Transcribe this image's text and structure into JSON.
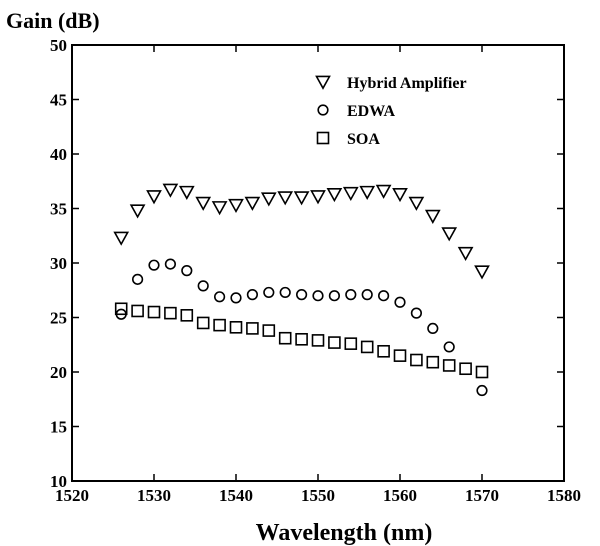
{
  "chart_data": {
    "type": "scatter",
    "ylabel": "Gain (dB)",
    "xlabel": "Wavelength (nm)",
    "xlim": [
      1520,
      1580
    ],
    "ylim": [
      10,
      50
    ],
    "xticks": [
      "1520",
      "1530",
      "1540",
      "1550",
      "1560",
      "1570",
      "1580"
    ],
    "yticks": [
      "10",
      "15",
      "20",
      "25",
      "30",
      "35",
      "40",
      "45",
      "50"
    ],
    "grid": false,
    "legend_position": "top-right",
    "series": [
      {
        "name": "Hybrid Amplifier",
        "marker": "triangle-down",
        "x": [
          1526,
          1528,
          1530,
          1532,
          1534,
          1536,
          1538,
          1540,
          1542,
          1544,
          1546,
          1548,
          1550,
          1552,
          1554,
          1556,
          1558,
          1560,
          1562,
          1564,
          1566,
          1568,
          1570
        ],
        "y": [
          32.3,
          34.8,
          36.1,
          36.7,
          36.5,
          35.5,
          35.1,
          35.3,
          35.5,
          35.9,
          36.0,
          36.0,
          36.1,
          36.3,
          36.4,
          36.5,
          36.6,
          36.3,
          35.5,
          34.3,
          32.7,
          30.9,
          29.2
        ]
      },
      {
        "name": "EDWA",
        "marker": "circle",
        "x": [
          1526,
          1528,
          1530,
          1532,
          1534,
          1536,
          1538,
          1540,
          1542,
          1544,
          1546,
          1548,
          1550,
          1552,
          1554,
          1556,
          1558,
          1560,
          1562,
          1564,
          1566,
          1570
        ],
        "y": [
          25.3,
          28.5,
          29.8,
          29.9,
          29.3,
          27.9,
          26.9,
          26.8,
          27.1,
          27.3,
          27.3,
          27.1,
          27.0,
          27.0,
          27.1,
          27.1,
          27.0,
          26.4,
          25.4,
          24.0,
          22.3,
          18.3
        ]
      },
      {
        "name": "SOA",
        "marker": "square",
        "x": [
          1526,
          1528,
          1530,
          1532,
          1534,
          1536,
          1538,
          1540,
          1542,
          1544,
          1546,
          1548,
          1550,
          1552,
          1554,
          1556,
          1558,
          1560,
          1562,
          1564,
          1566,
          1568,
          1570
        ],
        "y": [
          25.8,
          25.6,
          25.5,
          25.4,
          25.2,
          24.5,
          24.3,
          24.1,
          24.0,
          23.8,
          23.1,
          23.0,
          22.9,
          22.7,
          22.6,
          22.3,
          21.9,
          21.5,
          21.1,
          20.9,
          20.6,
          20.3,
          20.0
        ]
      }
    ]
  }
}
